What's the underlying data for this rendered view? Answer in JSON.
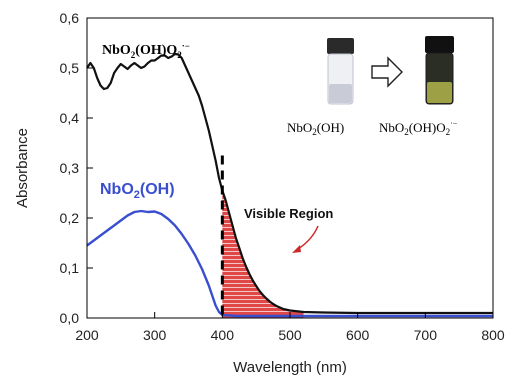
{
  "chart_data": {
    "type": "line",
    "title": "",
    "xlabel": "Wavelength (nm)",
    "ylabel": "Absorbance",
    "xlim": [
      200,
      800
    ],
    "ylim": [
      0,
      0.6
    ],
    "x_ticks": [
      "200",
      "300",
      "400",
      "500",
      "600",
      "700",
      "800"
    ],
    "y_ticks": [
      "0,0",
      "0,1",
      "0,2",
      "0,3",
      "0,4",
      "0,5",
      "0,6"
    ],
    "grid": false,
    "series": [
      {
        "name": "NbO2(OH)O2·−",
        "color": "#111111",
        "points": [
          [
            200,
            0.5
          ],
          [
            205,
            0.51
          ],
          [
            210,
            0.5
          ],
          [
            215,
            0.48
          ],
          [
            220,
            0.465
          ],
          [
            225,
            0.458
          ],
          [
            230,
            0.46
          ],
          [
            235,
            0.47
          ],
          [
            240,
            0.49
          ],
          [
            245,
            0.5
          ],
          [
            250,
            0.508
          ],
          [
            255,
            0.503
          ],
          [
            260,
            0.498
          ],
          [
            265,
            0.505
          ],
          [
            270,
            0.51
          ],
          [
            275,
            0.505
          ],
          [
            280,
            0.5
          ],
          [
            285,
            0.503
          ],
          [
            290,
            0.51
          ],
          [
            295,
            0.515
          ],
          [
            300,
            0.515
          ],
          [
            305,
            0.52
          ],
          [
            310,
            0.525
          ],
          [
            315,
            0.525
          ],
          [
            320,
            0.52
          ],
          [
            325,
            0.523
          ],
          [
            330,
            0.528
          ],
          [
            335,
            0.527
          ],
          [
            340,
            0.52
          ],
          [
            345,
            0.505
          ],
          [
            350,
            0.49
          ],
          [
            355,
            0.475
          ],
          [
            360,
            0.46
          ],
          [
            365,
            0.445
          ],
          [
            370,
            0.425
          ],
          [
            375,
            0.4
          ],
          [
            380,
            0.375
          ],
          [
            385,
            0.345
          ],
          [
            390,
            0.315
          ],
          [
            395,
            0.28
          ],
          [
            400,
            0.255
          ],
          [
            405,
            0.235
          ],
          [
            410,
            0.21
          ],
          [
            415,
            0.185
          ],
          [
            420,
            0.16
          ],
          [
            425,
            0.14
          ],
          [
            430,
            0.12
          ],
          [
            435,
            0.103
          ],
          [
            440,
            0.088
          ],
          [
            445,
            0.075
          ],
          [
            450,
            0.064
          ],
          [
            455,
            0.054
          ],
          [
            460,
            0.046
          ],
          [
            465,
            0.039
          ],
          [
            470,
            0.033
          ],
          [
            475,
            0.028
          ],
          [
            480,
            0.024
          ],
          [
            490,
            0.018
          ],
          [
            500,
            0.015
          ],
          [
            520,
            0.012
          ],
          [
            550,
            0.011
          ],
          [
            600,
            0.01
          ],
          [
            650,
            0.01
          ],
          [
            700,
            0.01
          ],
          [
            750,
            0.01
          ],
          [
            800,
            0.01
          ]
        ]
      },
      {
        "name": "NbO2(OH)",
        "color": "#3a4fd0",
        "points": [
          [
            200,
            0.145
          ],
          [
            210,
            0.155
          ],
          [
            220,
            0.165
          ],
          [
            230,
            0.175
          ],
          [
            240,
            0.185
          ],
          [
            250,
            0.195
          ],
          [
            260,
            0.205
          ],
          [
            270,
            0.212
          ],
          [
            280,
            0.214
          ],
          [
            290,
            0.212
          ],
          [
            300,
            0.213
          ],
          [
            310,
            0.208
          ],
          [
            320,
            0.198
          ],
          [
            330,
            0.185
          ],
          [
            340,
            0.168
          ],
          [
            350,
            0.148
          ],
          [
            360,
            0.125
          ],
          [
            370,
            0.098
          ],
          [
            380,
            0.065
          ],
          [
            385,
            0.045
          ],
          [
            390,
            0.025
          ],
          [
            395,
            0.012
          ],
          [
            400,
            0.006
          ],
          [
            420,
            0.004
          ],
          [
            450,
            0.004
          ],
          [
            500,
            0.004
          ],
          [
            600,
            0.004
          ],
          [
            700,
            0.004
          ],
          [
            800,
            0.004
          ]
        ]
      }
    ],
    "annotations": {
      "visible_region": "Visible Region",
      "blue_label": "NbO2(OH)",
      "black_label": "NbO2(OH)O2·−",
      "vial_left_label": "NbO2(OH)",
      "vial_right_label": "NbO2(OH)O2·−"
    },
    "visible_region_start": 400,
    "shade_color": "#e04848",
    "vial_colors": {
      "left_liquid": "#c9ccd6",
      "right_liquid": "#9da044"
    }
  }
}
